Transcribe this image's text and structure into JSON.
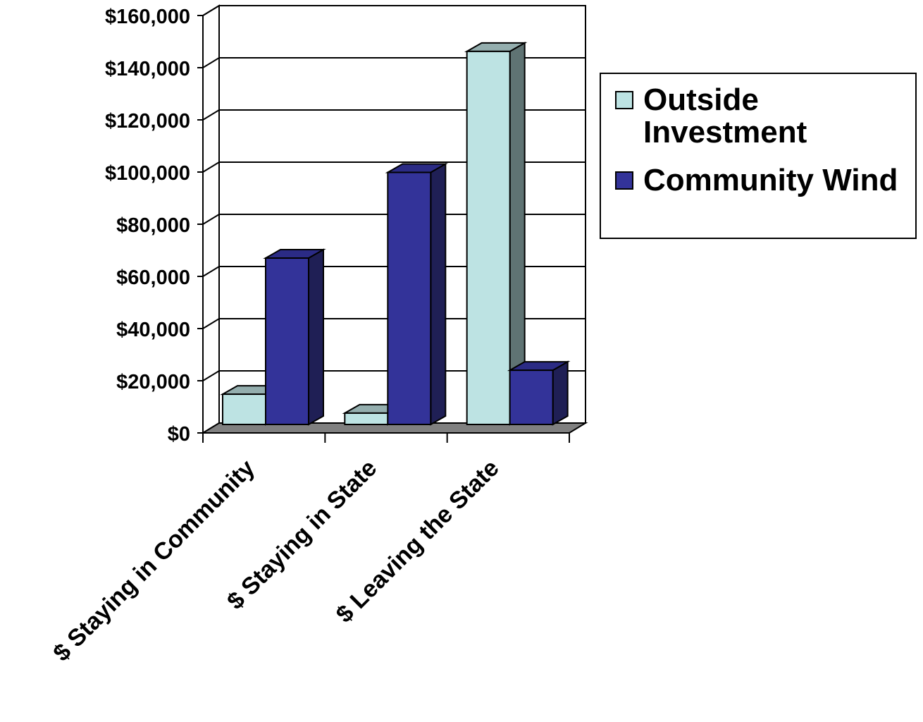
{
  "chart_data": {
    "type": "bar",
    "style": "3d-clustered-column",
    "categories": [
      "$ Staying in Community",
      "$ Staying in State",
      "$ Leaving the State"
    ],
    "series": [
      {
        "name": "Outside Investment",
        "color": "#bde3e3",
        "side_color": "#5f7373",
        "values": [
          12000,
          4500,
          148000
        ]
      },
      {
        "name": "Community Wind",
        "color": "#333399",
        "side_color": "#1f1f55",
        "values": [
          66000,
          100000,
          21500
        ]
      }
    ],
    "y_ticks": [
      "$0",
      "$20,000",
      "$40,000",
      "$60,000",
      "$80,000",
      "$100,000",
      "$120,000",
      "$140,000",
      "$160,000"
    ],
    "ylim": [
      0,
      160000
    ],
    "grid": true,
    "legend_position": "right",
    "title": "",
    "xlabel": "",
    "ylabel": ""
  }
}
